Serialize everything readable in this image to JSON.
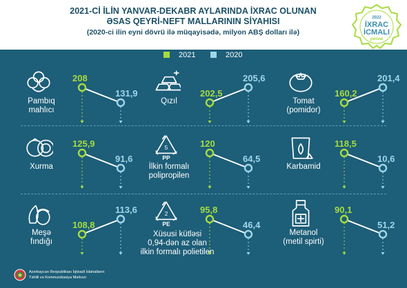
{
  "header": {
    "title_line1": "2021-Cİ İLİN YANVAR-DEKABR AYLARINDA İXRAC OLUNAN",
    "title_line2": "ƏSAS QEYRİ-NEFT MALLARININ SİYAHISI",
    "subtitle": "(2020-ci ilin eyni dövrü ilə müqayisədə, milyon ABŞ dolları ilə)"
  },
  "badge": {
    "year": "2022",
    "line1": "İXRAC",
    "line2": "İCMALI",
    "month": "yanvar"
  },
  "legend": {
    "a": "2021",
    "b": "2020"
  },
  "footer": {
    "line1": "Azərbaycan Respublikası İqtisadi İslahatların",
    "line2": "Təhlili və Kommunikasiya Mərkəzi"
  },
  "colors": {
    "background": "#1d5e78",
    "series_2021": "#a6dc3f",
    "series_2020": "#9ed6ea"
  },
  "chart_data": {
    "type": "line",
    "series": [
      {
        "name": "2021",
        "color": "#a6dc3f"
      },
      {
        "name": "2020",
        "color": "#9ed6ea"
      }
    ],
    "items": [
      {
        "label_lines": [
          "Pambıq",
          "mahlıcı"
        ],
        "v2021": 208,
        "v2020": 131.9,
        "v2021_text": "208",
        "v2020_text": "131,9",
        "icon": "cotton-icon"
      },
      {
        "label_lines": [
          "Qızıl"
        ],
        "v2021": 202.5,
        "v2020": 205.6,
        "v2021_text": "202,5",
        "v2020_text": "205,6",
        "icon": "gold-bars-icon"
      },
      {
        "label_lines": [
          "Tomat",
          "(pomidor)"
        ],
        "v2021": 160.2,
        "v2020": 201.4,
        "v2021_text": "160,2",
        "v2020_text": "201,4",
        "icon": "tomato-icon"
      },
      {
        "label_lines": [
          "Xurma"
        ],
        "v2021": 125.9,
        "v2020": 91.6,
        "v2021_text": "125,9",
        "v2020_text": "91,6",
        "icon": "persimmon-icon"
      },
      {
        "label_lines": [
          "İlkin formalı",
          "polipropilen"
        ],
        "v2021": 120,
        "v2020": 64.5,
        "v2021_text": "120",
        "v2020_text": "64,5",
        "icon": "recycle-pp-icon",
        "icon_text": "PP",
        "icon_num": "5"
      },
      {
        "label_lines": [
          "Karbamid"
        ],
        "v2021": 118.5,
        "v2020": 10.6,
        "v2021_text": "118,5",
        "v2020_text": "10,6",
        "icon": "fertilizer-bag-icon"
      },
      {
        "label_lines": [
          "Meşə",
          "fındığı"
        ],
        "v2021": 108.8,
        "v2020": 113.6,
        "v2021_text": "108,8",
        "v2020_text": "113,6",
        "icon": "hazelnut-icon"
      },
      {
        "label_lines": [
          "Xüsusi kütləsi",
          "0,94-dən az olan",
          "ilkin formalı polietilen"
        ],
        "v2021": 95.8,
        "v2020": 46.4,
        "v2021_text": "95,8",
        "v2020_text": "46,4",
        "icon": "recycle-pe-icon",
        "icon_text": "PE",
        "icon_num": "2"
      },
      {
        "label_lines": [
          "Metanol",
          "(metil spirti)"
        ],
        "v2021": 90.1,
        "v2020": 51.2,
        "v2021_text": "90,1",
        "v2020_text": "51,2",
        "icon": "bottle-icon"
      }
    ]
  }
}
